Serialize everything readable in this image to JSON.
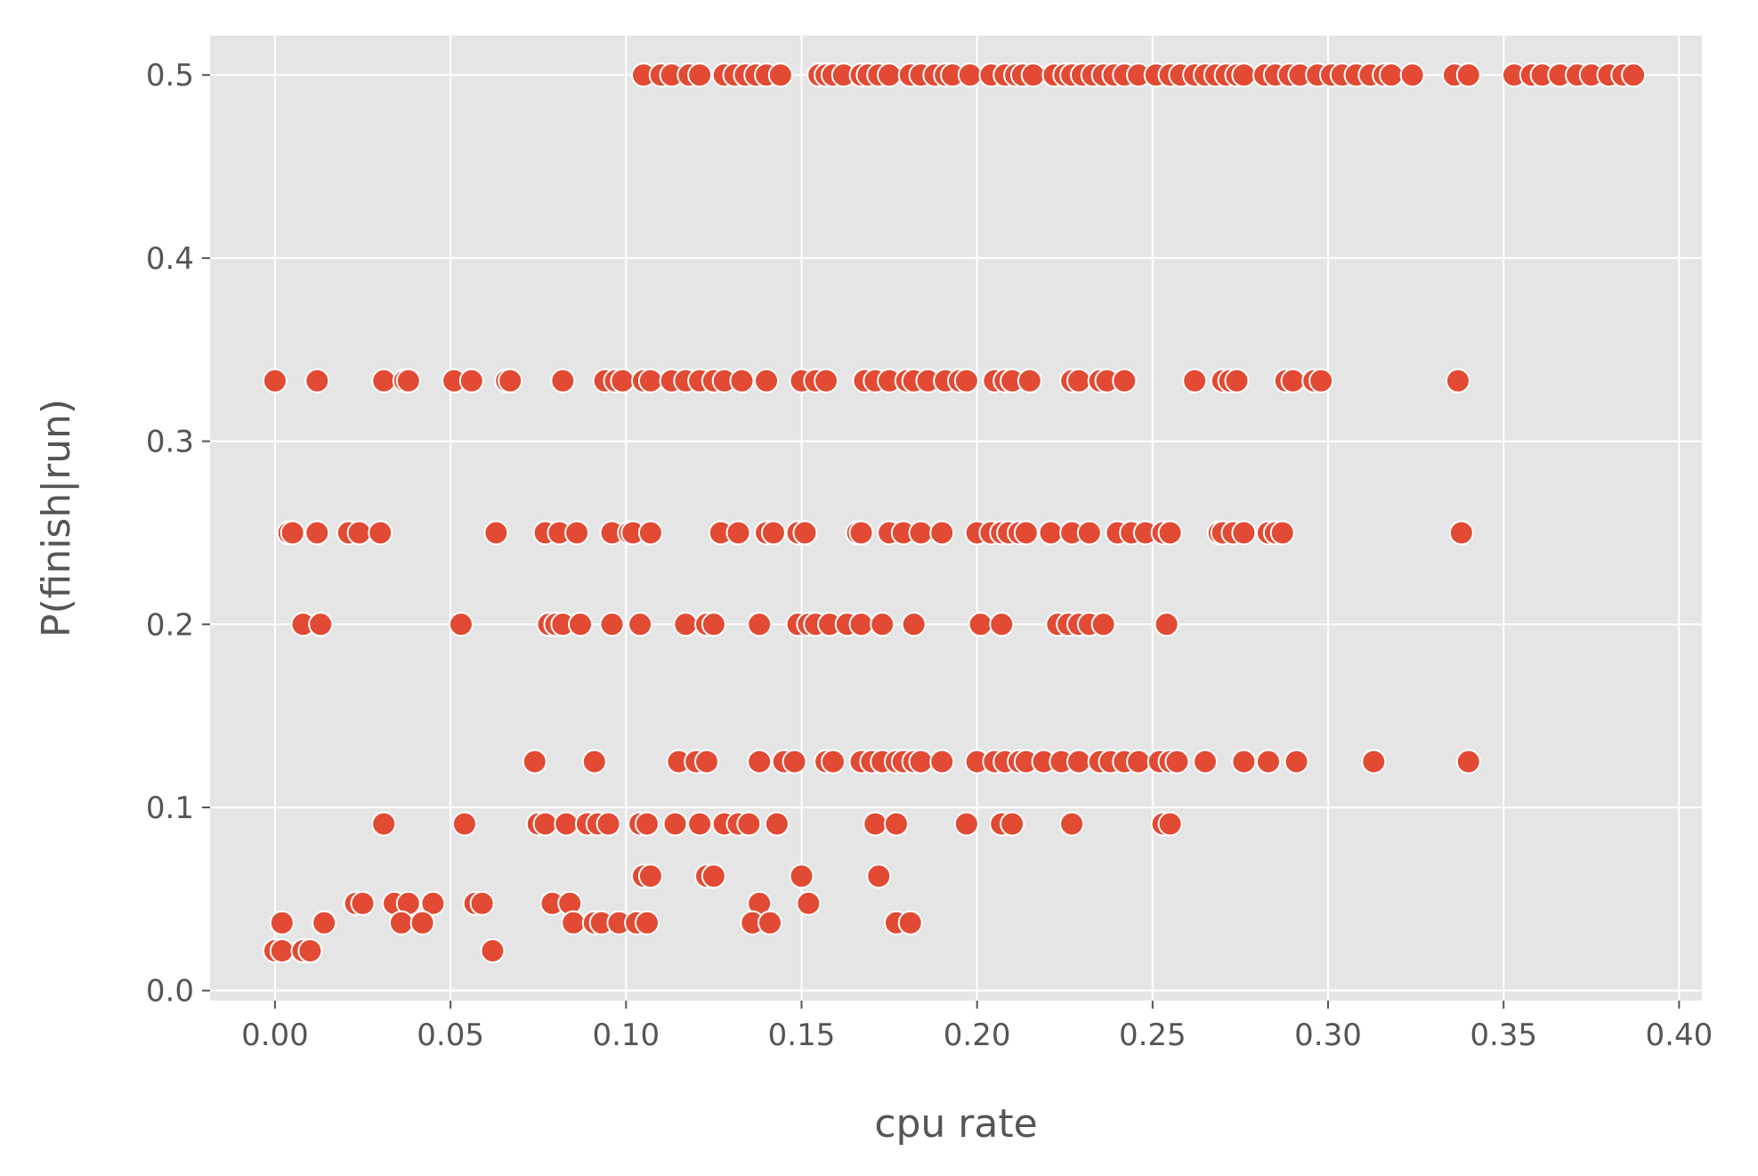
{
  "chart_data": {
    "type": "scatter",
    "title": "",
    "xlabel": "cpu rate",
    "ylabel": "P(finish|run)",
    "xlim": [
      -0.0185,
      0.4065
    ],
    "ylim": [
      -0.0055,
      0.5215
    ],
    "xticks": [
      0.0,
      0.05,
      0.1,
      0.15,
      0.2,
      0.25,
      0.3,
      0.35,
      0.4
    ],
    "xtick_labels": [
      "0.00",
      "0.05",
      "0.10",
      "0.15",
      "0.20",
      "0.25",
      "0.30",
      "0.35",
      "0.40"
    ],
    "yticks": [
      0.0,
      0.1,
      0.2,
      0.3,
      0.4,
      0.5
    ],
    "ytick_labels": [
      "0.0",
      "0.1",
      "0.2",
      "0.3",
      "0.4",
      "0.5"
    ],
    "grid": true,
    "style": {
      "background": "#E5E5E5",
      "grid_color": "#FFFFFF",
      "marker_color": "#E24A33",
      "marker_edge": "#FFFFFF",
      "text_color": "#555555"
    },
    "series": [
      {
        "rows": [
          {
            "y": 0.5,
            "x": [
              0.105,
              0.11,
              0.113,
              0.118,
              0.121,
              0.128,
              0.131,
              0.134,
              0.137,
              0.14,
              0.144,
              0.155,
              0.157,
              0.159,
              0.162,
              0.167,
              0.169,
              0.172,
              0.175,
              0.181,
              0.184,
              0.188,
              0.191,
              0.193,
              0.198,
              0.204,
              0.208,
              0.211,
              0.213,
              0.216,
              0.222,
              0.225,
              0.227,
              0.23,
              0.233,
              0.236,
              0.239,
              0.242,
              0.246,
              0.251,
              0.255,
              0.258,
              0.262,
              0.265,
              0.268,
              0.271,
              0.274,
              0.276,
              0.282,
              0.285,
              0.289,
              0.292,
              0.297,
              0.301,
              0.304,
              0.308,
              0.312,
              0.316,
              0.318,
              0.324,
              0.336,
              0.34,
              0.353,
              0.358,
              0.361,
              0.366,
              0.371,
              0.375,
              0.38,
              0.384,
              0.387
            ]
          },
          {
            "y": 0.333,
            "x": [
              0.0,
              0.012,
              0.031,
              0.037,
              0.038,
              0.051,
              0.056,
              0.066,
              0.067,
              0.082,
              0.094,
              0.097,
              0.099,
              0.105,
              0.107,
              0.113,
              0.117,
              0.121,
              0.125,
              0.128,
              0.133,
              0.14,
              0.15,
              0.154,
              0.157,
              0.168,
              0.171,
              0.175,
              0.18,
              0.182,
              0.186,
              0.191,
              0.195,
              0.197,
              0.205,
              0.208,
              0.21,
              0.215,
              0.227,
              0.229,
              0.235,
              0.237,
              0.242,
              0.262,
              0.27,
              0.272,
              0.274,
              0.288,
              0.29,
              0.296,
              0.298,
              0.337
            ]
          },
          {
            "y": 0.25,
            "x": [
              0.004,
              0.005,
              0.012,
              0.021,
              0.024,
              0.03,
              0.063,
              0.077,
              0.081,
              0.086,
              0.096,
              0.101,
              0.102,
              0.107,
              0.127,
              0.132,
              0.14,
              0.142,
              0.149,
              0.151,
              0.166,
              0.167,
              0.175,
              0.179,
              0.184,
              0.19,
              0.2,
              0.204,
              0.207,
              0.209,
              0.212,
              0.214,
              0.221,
              0.227,
              0.232,
              0.24,
              0.244,
              0.248,
              0.253,
              0.255,
              0.269,
              0.27,
              0.273,
              0.276,
              0.283,
              0.285,
              0.287,
              0.338
            ]
          },
          {
            "y": 0.2,
            "x": [
              0.008,
              0.013,
              0.053,
              0.078,
              0.08,
              0.082,
              0.087,
              0.096,
              0.104,
              0.117,
              0.123,
              0.125,
              0.138,
              0.149,
              0.152,
              0.154,
              0.158,
              0.163,
              0.167,
              0.173,
              0.182,
              0.201,
              0.207,
              0.223,
              0.226,
              0.229,
              0.232,
              0.236,
              0.254
            ]
          },
          {
            "y": 0.125,
            "x": [
              0.074,
              0.091,
              0.115,
              0.12,
              0.123,
              0.138,
              0.145,
              0.148,
              0.157,
              0.159,
              0.167,
              0.17,
              0.173,
              0.177,
              0.179,
              0.182,
              0.184,
              0.19,
              0.2,
              0.205,
              0.208,
              0.212,
              0.214,
              0.219,
              0.224,
              0.229,
              0.235,
              0.238,
              0.242,
              0.246,
              0.252,
              0.255,
              0.257,
              0.265,
              0.276,
              0.283,
              0.291,
              0.313,
              0.34
            ]
          },
          {
            "y": 0.091,
            "x": [
              0.031,
              0.054,
              0.075,
              0.077,
              0.083,
              0.089,
              0.092,
              0.095,
              0.104,
              0.106,
              0.114,
              0.121,
              0.128,
              0.132,
              0.135,
              0.143,
              0.171,
              0.177,
              0.197,
              0.207,
              0.21,
              0.227,
              0.253,
              0.255
            ]
          },
          {
            "y": 0.0625,
            "x": [
              0.105,
              0.107,
              0.123,
              0.125,
              0.15,
              0.172
            ]
          },
          {
            "y": 0.0476,
            "x": [
              0.023,
              0.025,
              0.034,
              0.038,
              0.045,
              0.057,
              0.059,
              0.079,
              0.084,
              0.138,
              0.152
            ]
          },
          {
            "y": 0.037,
            "x": [
              0.002,
              0.014,
              0.036,
              0.042,
              0.085,
              0.091,
              0.093,
              0.098,
              0.103,
              0.106,
              0.136,
              0.141,
              0.177,
              0.181
            ]
          },
          {
            "y": 0.0217,
            "x": [
              0.0,
              0.002,
              0.008,
              0.01,
              0.062
            ]
          }
        ]
      }
    ]
  }
}
